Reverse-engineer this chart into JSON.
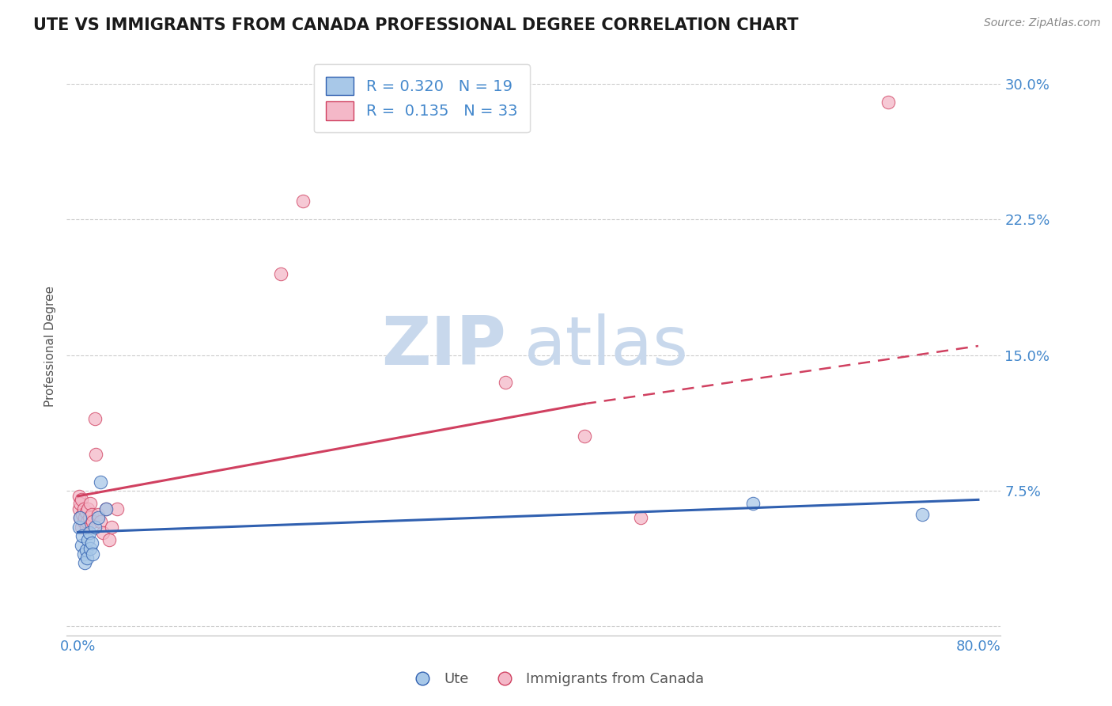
{
  "title": "UTE VS IMMIGRANTS FROM CANADA PROFESSIONAL DEGREE CORRELATION CHART",
  "source": "Source: ZipAtlas.com",
  "ylabel": "Professional Degree",
  "xlim": [
    -0.01,
    0.82
  ],
  "ylim": [
    -0.005,
    0.315
  ],
  "yticks": [
    0.0,
    0.075,
    0.15,
    0.225,
    0.3
  ],
  "ytick_labels": [
    "",
    "7.5%",
    "15.0%",
    "22.5%",
    "30.0%"
  ],
  "xticks": [
    0.0,
    0.2,
    0.4,
    0.6,
    0.8
  ],
  "xtick_labels": [
    "0.0%",
    "",
    "",
    "",
    "80.0%"
  ],
  "title_fontsize": 15,
  "axis_label_fontsize": 11,
  "tick_fontsize": 13,
  "legend_r_blue": "0.320",
  "legend_n_blue": "19",
  "legend_r_pink": "0.135",
  "legend_n_pink": "33",
  "blue_scatter_color": "#A8C8E8",
  "pink_scatter_color": "#F4B8C8",
  "blue_line_color": "#3060B0",
  "pink_line_color": "#D04060",
  "background_color": "#FFFFFF",
  "grid_color": "#CCCCCC",
  "watermark_zip": "ZIP",
  "watermark_atlas": "atlas",
  "watermark_color_zip": "#C8D8EC",
  "watermark_color_atlas": "#C8D8EC",
  "ute_x": [
    0.001,
    0.002,
    0.003,
    0.004,
    0.005,
    0.006,
    0.007,
    0.008,
    0.009,
    0.01,
    0.011,
    0.012,
    0.013,
    0.015,
    0.018,
    0.02,
    0.025,
    0.6,
    0.75
  ],
  "ute_y": [
    0.055,
    0.06,
    0.045,
    0.05,
    0.04,
    0.035,
    0.042,
    0.038,
    0.048,
    0.052,
    0.043,
    0.046,
    0.04,
    0.055,
    0.06,
    0.08,
    0.065,
    0.068,
    0.062
  ],
  "canada_x": [
    0.001,
    0.001,
    0.002,
    0.002,
    0.003,
    0.003,
    0.004,
    0.005,
    0.005,
    0.006,
    0.007,
    0.007,
    0.008,
    0.009,
    0.01,
    0.011,
    0.012,
    0.013,
    0.015,
    0.016,
    0.018,
    0.02,
    0.022,
    0.025,
    0.028,
    0.03,
    0.035,
    0.18,
    0.2,
    0.38,
    0.45,
    0.5,
    0.72
  ],
  "canada_y": [
    0.065,
    0.072,
    0.06,
    0.068,
    0.055,
    0.07,
    0.062,
    0.058,
    0.065,
    0.06,
    0.055,
    0.063,
    0.058,
    0.065,
    0.06,
    0.068,
    0.062,
    0.058,
    0.115,
    0.095,
    0.062,
    0.058,
    0.052,
    0.065,
    0.048,
    0.055,
    0.065,
    0.195,
    0.235,
    0.135,
    0.105,
    0.06,
    0.29
  ],
  "blue_trend_x0": 0.0,
  "blue_trend_y0": 0.052,
  "blue_trend_x1": 0.8,
  "blue_trend_y1": 0.07,
  "pink_trend_x0": 0.0,
  "pink_trend_y0": 0.072,
  "pink_trend_x1_solid": 0.45,
  "pink_trend_y1_solid": 0.123,
  "pink_trend_x1_dashed": 0.8,
  "pink_trend_y1_dashed": 0.155
}
